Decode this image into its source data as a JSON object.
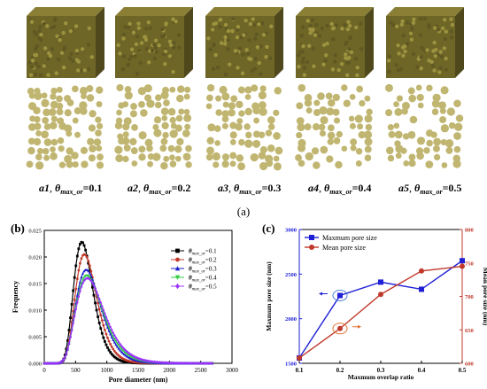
{
  "figure_a": {
    "panel_label": "(a)",
    "samples": [
      {
        "id": "a1",
        "value": "0.1"
      },
      {
        "id": "a2",
        "value": "0.2"
      },
      {
        "id": "a3",
        "value": "0.3"
      },
      {
        "id": "a4",
        "value": "0.4"
      },
      {
        "id": "a5",
        "value": "0.5"
      }
    ],
    "theta_symbol": "θ",
    "theta_subscript": "max_or",
    "particle_color": "#c1b671",
    "cube_top_color": "#8a7f35",
    "cube_front_color": "#6e6627",
    "cube_side_color": "#4e481c"
  },
  "chart_data": [
    {
      "type": "line",
      "panel_label": "(b)",
      "xlabel": "Pore diameter (nm)",
      "ylabel": "Frequency",
      "xlim": [
        0,
        3000
      ],
      "ylim": [
        0,
        0.025
      ],
      "x_ticks": [
        "0",
        "500",
        "1000",
        "1500",
        "2000",
        "2500",
        "3000"
      ],
      "y_ticks": [
        "0.000",
        "0.005",
        "0.010",
        "0.015",
        "0.020",
        "0.025"
      ],
      "legend_position": "top-right",
      "series": [
        {
          "label": "0.1",
          "color": "#000000",
          "marker": "square",
          "peak_x": 600,
          "peak_y": 0.0228,
          "sigma": 155
        },
        {
          "label": "0.2",
          "color": "#c0392b",
          "marker": "circle",
          "peak_x": 640,
          "peak_y": 0.0205,
          "sigma": 172
        },
        {
          "label": "0.3",
          "color": "#2020d0",
          "marker": "triangle",
          "peak_x": 670,
          "peak_y": 0.0176,
          "sigma": 200
        },
        {
          "label": "0.4",
          "color": "#2ecc40",
          "marker": "triangle-down",
          "peak_x": 680,
          "peak_y": 0.0165,
          "sigma": 213
        },
        {
          "label": "0.5",
          "color": "#9b30ff",
          "marker": "diamond",
          "peak_x": 690,
          "peak_y": 0.016,
          "sigma": 225
        }
      ]
    },
    {
      "type": "line",
      "panel_label": "(c)",
      "xlabel": "Maxmum overlap ratio",
      "ylabel_left": "Maxmum pore size (nm)",
      "ylabel_right": "Mean pore size (nm)",
      "x": [
        0.1,
        0.2,
        0.3,
        0.4,
        0.5
      ],
      "xlim": [
        0.1,
        0.5
      ],
      "ylim_left": [
        1500,
        3000
      ],
      "ylim_right": [
        600,
        800
      ],
      "x_ticks": [
        "0.1",
        "0.2",
        "0.3",
        "0.4",
        "0.5"
      ],
      "y_ticks_left": [
        "1500",
        "2000",
        "2500",
        "3000"
      ],
      "y_ticks_right": [
        "600",
        "650",
        "700",
        "750",
        "800"
      ],
      "legend_position": "top-left",
      "series": [
        {
          "name": "Maxmum pore size",
          "axis": "left",
          "color": "#1f1fd6",
          "marker": "square",
          "values": [
            1560,
            2260,
            2410,
            2330,
            2650
          ]
        },
        {
          "name": "Mean pore size",
          "axis": "right",
          "color": "#c0392b",
          "marker": "circle",
          "values": [
            608,
            652,
            703,
            738,
            745
          ]
        }
      ],
      "arrow_color": "#e07030"
    }
  ]
}
